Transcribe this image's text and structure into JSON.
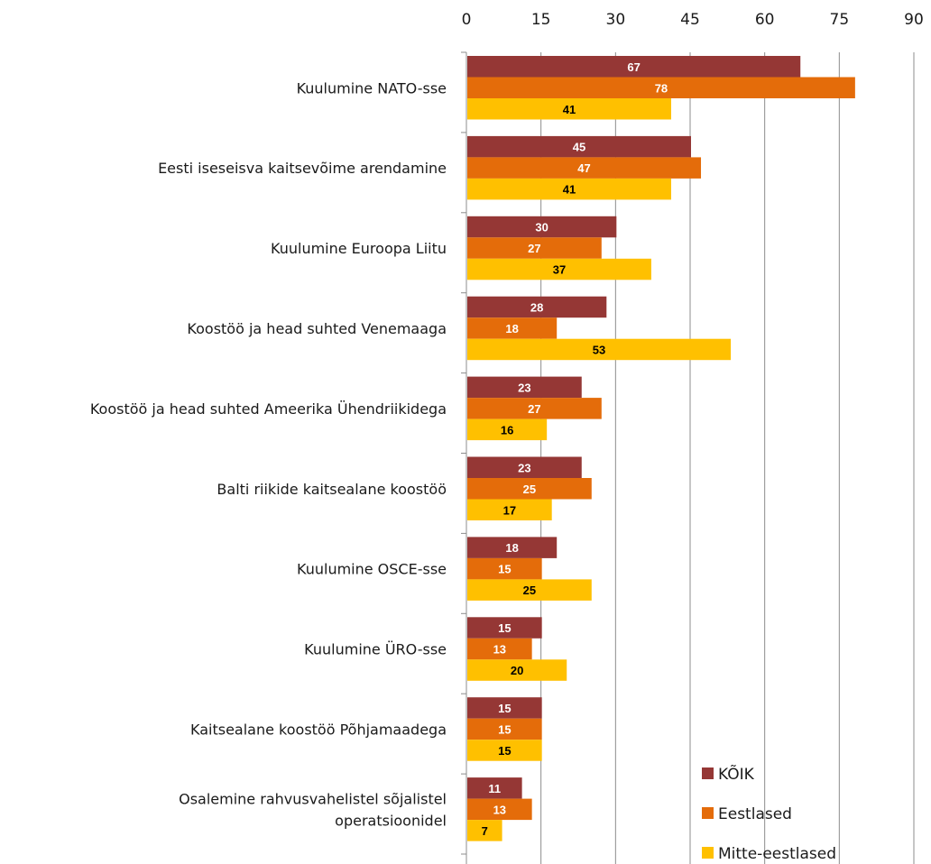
{
  "chart_data": {
    "type": "bar",
    "orientation": "horizontal",
    "title": "",
    "xlabel": "",
    "ylabel": "",
    "xlim": [
      0,
      90
    ],
    "xticks": [
      0,
      15,
      30,
      45,
      60,
      75,
      90
    ],
    "grid": true,
    "legend_position": "bottom-right",
    "categories": [
      "Kuulumine NATO-sse",
      "Eesti iseseisva kaitsevõime arendamine",
      "Kuulumine Euroopa Liitu",
      "Koostöö ja head suhted Venemaaga",
      "Koostöö ja head suhted Ameerika Ühendriikidega",
      "Balti riikide kaitsealane koostöö",
      "Kuulumine OSCE-sse",
      "Kuulumine ÜRO-sse",
      "Kaitsealane koostöö Põhjamaadega",
      "Osalemine rahvusvahelistel sõjalistel operatsioonidel"
    ],
    "category_lines": [
      [
        "Kuulumine NATO-sse"
      ],
      [
        "Eesti iseseisva kaitsevõime arendamine"
      ],
      [
        "Kuulumine Euroopa Liitu"
      ],
      [
        "Koostöö ja head suhted Venemaaga"
      ],
      [
        "Koostöö ja head suhted Ameerika Ühendriikidega"
      ],
      [
        "Balti riikide kaitsealane koostöö"
      ],
      [
        "Kuulumine OSCE-sse"
      ],
      [
        "Kuulumine ÜRO-sse"
      ],
      [
        "Kaitsealane koostöö Põhjamaadega"
      ],
      [
        "Osalemine rahvusvahelistel sõjalistel",
        "operatsioonidel"
      ]
    ],
    "series": [
      {
        "name": "KÕIK",
        "color": "#953735",
        "label_color": "#ffffff",
        "values": [
          67,
          45,
          30,
          28,
          23,
          23,
          18,
          15,
          15,
          11
        ]
      },
      {
        "name": "Eestlased",
        "color": "#E46C0A",
        "label_color": "#ffffff",
        "values": [
          78,
          47,
          27,
          18,
          27,
          25,
          15,
          13,
          15,
          13
        ]
      },
      {
        "name": "Mitte-eestlased",
        "color": "#FFC000",
        "label_color": "#000000",
        "values": [
          41,
          41,
          37,
          53,
          16,
          17,
          25,
          20,
          15,
          7
        ]
      }
    ]
  }
}
